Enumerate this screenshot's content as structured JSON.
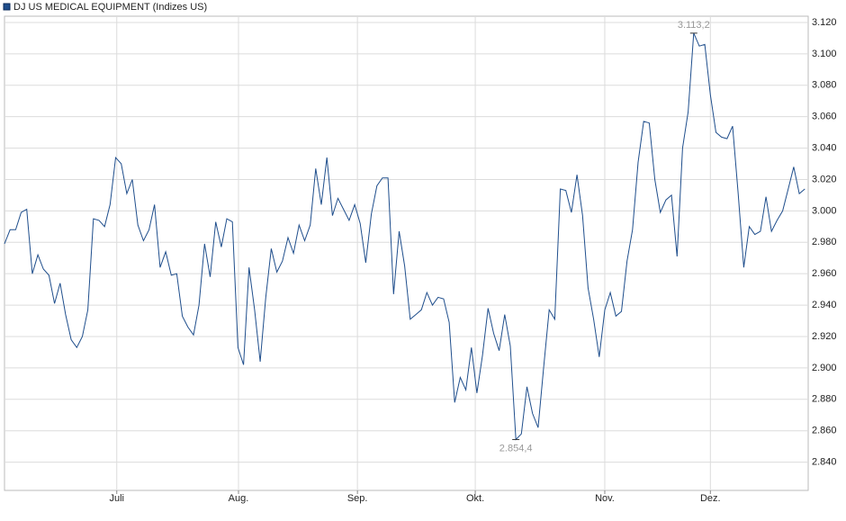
{
  "chart_data": {
    "type": "line",
    "title": "DJ US MEDICAL EQUIPMENT (Indizes US)",
    "series": [
      {
        "name": "DJ US MEDICAL EQUIPMENT (Indizes US)",
        "color": "#1f4e8c",
        "values": [
          2979,
          2988,
          2988,
          2999,
          3001,
          2960,
          2972,
          2963,
          2959,
          2941,
          2954,
          2934,
          2918,
          2913,
          2920,
          2937,
          2995,
          2994,
          2990,
          3004,
          3034,
          3030,
          3011,
          3020,
          2991,
          2981,
          2988,
          3004,
          2964,
          2974,
          2959,
          2960,
          2933,
          2926,
          2921,
          2940,
          2979,
          2958,
          2993,
          2977,
          2995,
          2993,
          2913,
          2902,
          2964,
          2937,
          2904,
          2945,
          2976,
          2961,
          2968,
          2983,
          2973,
          2991,
          2981,
          2991,
          3027,
          3004,
          3034,
          2997,
          3008,
          3001,
          2994,
          3004,
          2992,
          2967,
          2998,
          3016,
          3021,
          3021,
          2947,
          2987,
          2965,
          2931,
          2934,
          2937,
          2948,
          2940,
          2945,
          2944,
          2929,
          2878,
          2894,
          2886,
          2913,
          2884,
          2908,
          2938,
          2922,
          2911,
          2934,
          2914,
          2854.4,
          2858,
          2888,
          2871,
          2862,
          2900,
          2937,
          2931,
          3014,
          3013,
          2999,
          3023,
          2997,
          2951,
          2931,
          2907,
          2937,
          2948,
          2933,
          2936,
          2968,
          2988,
          3031,
          3057,
          3056,
          3020,
          2999,
          3007,
          3010,
          2971,
          3040,
          3063,
          3113.2,
          3105,
          3106,
          3074,
          3050,
          3047,
          3046,
          3054,
          3011,
          2964,
          2990,
          2985,
          2987,
          3009,
          2987,
          2994,
          3000,
          3014,
          3028,
          3011,
          3014
        ]
      }
    ],
    "annotations": [
      {
        "value": 3113.2,
        "label": "3.113,2"
      },
      {
        "value": 2854.4,
        "label": "2.854,4"
      }
    ],
    "xlim": [
      0,
      144.6
    ],
    "xticks": [
      {
        "value": 20.2,
        "label": "Juli"
      },
      {
        "value": 42.1,
        "label": "Aug."
      },
      {
        "value": 63.5,
        "label": "Sep."
      },
      {
        "value": 84.7,
        "label": "Okt."
      },
      {
        "value": 108.0,
        "label": "Nov."
      },
      {
        "value": 127.0,
        "label": "Dez."
      }
    ],
    "ylim": [
      2822,
      3124
    ],
    "yticks": [
      {
        "value": 2840,
        "label": "2.840"
      },
      {
        "value": 2860,
        "label": "2.860"
      },
      {
        "value": 2880,
        "label": "2.880"
      },
      {
        "value": 2900,
        "label": "2.900"
      },
      {
        "value": 2920,
        "label": "2.920"
      },
      {
        "value": 2940,
        "label": "2.940"
      },
      {
        "value": 2960,
        "label": "2.960"
      },
      {
        "value": 2980,
        "label": "2.980"
      },
      {
        "value": 3000,
        "label": "3.000"
      },
      {
        "value": 3020,
        "label": "3.020"
      },
      {
        "value": 3040,
        "label": "3.040"
      },
      {
        "value": 3060,
        "label": "3.060"
      },
      {
        "value": 3080,
        "label": "3.080"
      },
      {
        "value": 3100,
        "label": "3.100"
      },
      {
        "value": 3120,
        "label": "3.120"
      }
    ],
    "grid": true
  }
}
